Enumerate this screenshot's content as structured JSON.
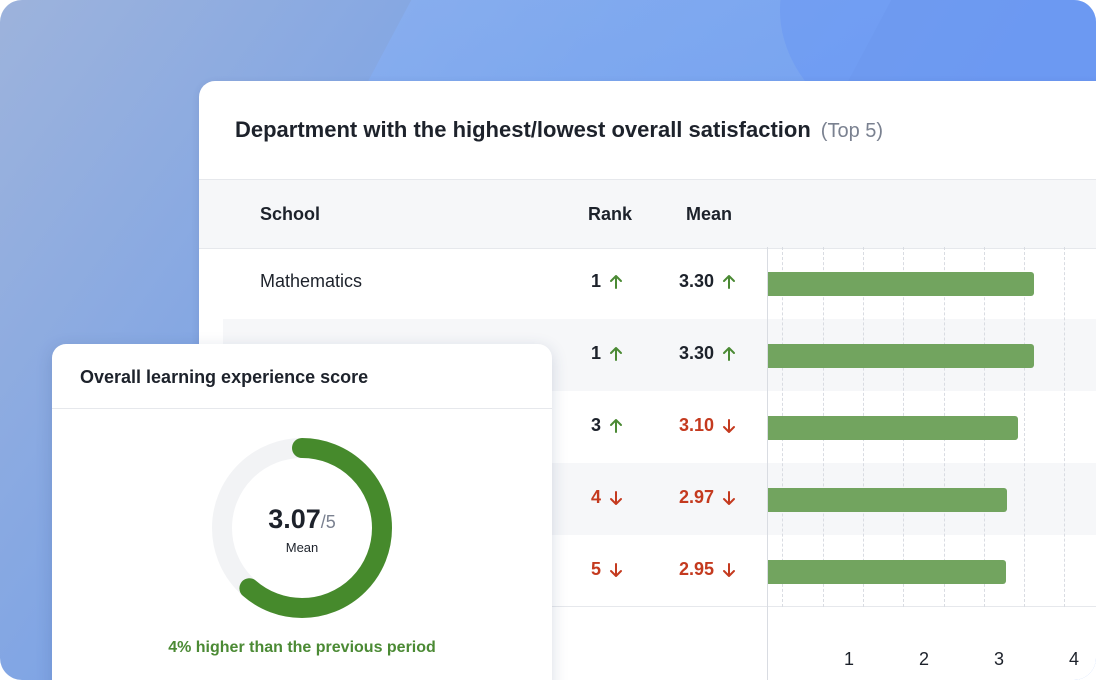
{
  "main_card": {
    "title": "Department with the highest/lowest overall satisfaction",
    "subtitle": "(Top 5)",
    "columns": {
      "school": "School",
      "rank": "Rank",
      "mean": "Mean"
    },
    "rows": [
      {
        "school": "Mathematics",
        "rank": "1",
        "rank_trend": "up",
        "mean": "3.30",
        "mean_trend": "up"
      },
      {
        "school": "",
        "rank": "1",
        "rank_trend": "up",
        "mean": "3.30",
        "mean_trend": "up"
      },
      {
        "school": "",
        "rank": "3",
        "rank_trend": "up",
        "mean": "3.10",
        "mean_trend": "down"
      },
      {
        "school": "",
        "rank": "4",
        "rank_trend": "down",
        "mean": "2.97",
        "mean_trend": "down"
      },
      {
        "school": "",
        "rank": "5",
        "rank_trend": "down",
        "mean": "2.95",
        "mean_trend": "down"
      }
    ]
  },
  "chart_data": {
    "type": "bar",
    "orientation": "horizontal",
    "values": [
      3.3,
      3.3,
      3.1,
      2.97,
      2.95
    ],
    "x_ticks": [
      "1",
      "2",
      "3",
      "4"
    ],
    "xlim": [
      0,
      4.3
    ],
    "grid": true,
    "bar_color": "#72a45f"
  },
  "score_card": {
    "title": "Overall learning experience score",
    "value": "3.07",
    "denominator": "/5",
    "value_label": "Mean",
    "score_fraction": 0.614,
    "note": "4% higher than the previous period"
  },
  "colors": {
    "positive": "#4b8a34",
    "negative": "#c43a1f",
    "donut_track": "#f2f3f5",
    "donut_fill": "#468a2c"
  }
}
